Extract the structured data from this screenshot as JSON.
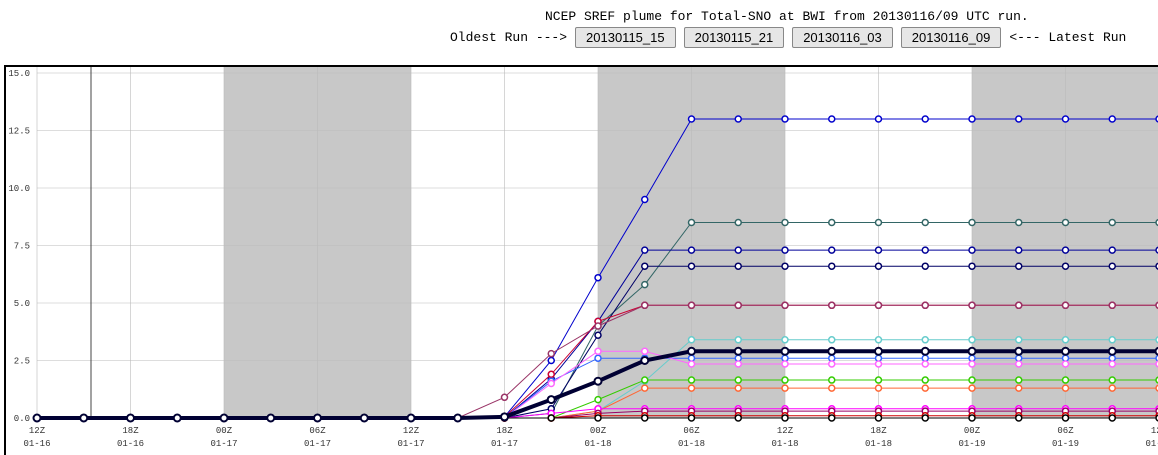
{
  "controls": {
    "oldest_label": "Oldest Run --->",
    "latest_label": "<--- Latest Run",
    "runs": [
      "20130115_15",
      "20130115_21",
      "20130116_03",
      "20130116_09"
    ]
  },
  "chart_data": {
    "type": "line",
    "title": "NCEP SREF plume for Total-SNO at BWI from 20130116/09 UTC run.",
    "x": [
      0,
      3,
      6,
      9,
      12,
      15,
      18,
      21,
      24,
      27,
      30,
      33,
      36,
      39,
      42,
      45,
      48,
      51,
      54,
      57,
      60,
      63,
      66,
      69,
      72
    ],
    "xlim": [
      0,
      72
    ],
    "xticks": [
      {
        "value": 0,
        "label": "12Z",
        "sublabel": "01-16"
      },
      {
        "value": 6,
        "label": "18Z",
        "sublabel": "01-16"
      },
      {
        "value": 12,
        "label": "00Z",
        "sublabel": "01-17"
      },
      {
        "value": 18,
        "label": "06Z",
        "sublabel": "01-17"
      },
      {
        "value": 24,
        "label": "12Z",
        "sublabel": "01-17"
      },
      {
        "value": 30,
        "label": "18Z",
        "sublabel": "01-17"
      },
      {
        "value": 36,
        "label": "00Z",
        "sublabel": "01-18"
      },
      {
        "value": 42,
        "label": "06Z",
        "sublabel": "01-18"
      },
      {
        "value": 48,
        "label": "12Z",
        "sublabel": "01-18"
      },
      {
        "value": 54,
        "label": "18Z",
        "sublabel": "01-18"
      },
      {
        "value": 60,
        "label": "00Z",
        "sublabel": "01-19"
      },
      {
        "value": 66,
        "label": "06Z",
        "sublabel": "01-19"
      },
      {
        "value": 72,
        "label": "12Z",
        "sublabel": "01-19"
      }
    ],
    "ylim": [
      0,
      15
    ],
    "yticks": [
      {
        "value": 0,
        "label": "0.0"
      },
      2.5,
      {
        "value": 5,
        "label": "5.0"
      },
      7.5,
      {
        "value": 10,
        "label": "10.0"
      },
      12.5,
      {
        "value": 15,
        "label": "15.0"
      }
    ],
    "grid": true,
    "shaded": [
      [
        12,
        24
      ],
      [
        36,
        48
      ],
      [
        60,
        72
      ]
    ],
    "series": [
      {
        "color": "#0000cc",
        "width": 1,
        "values": [
          0,
          0,
          0,
          0,
          0,
          0,
          0,
          0,
          0,
          0,
          0.05,
          2.5,
          6.1,
          9.5,
          13,
          13,
          13,
          13,
          13,
          13,
          13,
          13,
          13,
          13,
          13
        ]
      },
      {
        "color": "#336666",
        "width": 1,
        "values": [
          0,
          0,
          0,
          0,
          0,
          0,
          0,
          0,
          0,
          0,
          0,
          0.2,
          4.0,
          5.8,
          8.5,
          8.5,
          8.5,
          8.5,
          8.5,
          8.5,
          8.5,
          8.5,
          8.5,
          8.5,
          8.5
        ]
      },
      {
        "color": "#000099",
        "width": 1,
        "values": [
          0,
          0,
          0,
          0,
          0,
          0,
          0,
          0,
          0,
          0,
          0,
          1.7,
          4.2,
          7.3,
          7.3,
          7.3,
          7.3,
          7.3,
          7.3,
          7.3,
          7.3,
          7.3,
          7.3,
          7.3,
          7.3
        ]
      },
      {
        "color": "#000066",
        "width": 1,
        "values": [
          0,
          0,
          0,
          0,
          0,
          0,
          0,
          0,
          0,
          0,
          0,
          0.4,
          3.6,
          6.6,
          6.6,
          6.6,
          6.6,
          6.6,
          6.6,
          6.6,
          6.6,
          6.6,
          6.6,
          6.6,
          6.6
        ]
      },
      {
        "color": "#cc0033",
        "width": 1,
        "values": [
          0,
          0,
          0,
          0,
          0,
          0,
          0,
          0,
          0,
          0,
          0.05,
          1.9,
          4.2,
          4.9,
          4.9,
          4.9,
          4.9,
          4.9,
          4.9,
          4.9,
          4.9,
          4.9,
          4.9,
          4.9,
          4.9
        ]
      },
      {
        "color": "#993366",
        "width": 1,
        "values": [
          0,
          0,
          0,
          0,
          0,
          0,
          0,
          0,
          0,
          0,
          0.9,
          2.8,
          4.0,
          4.9,
          4.9,
          4.9,
          4.9,
          4.9,
          4.9,
          4.9,
          4.9,
          4.9,
          4.9,
          4.9,
          4.9
        ]
      },
      {
        "color": "#66cccc",
        "width": 1,
        "values": [
          0,
          0,
          0,
          0,
          0,
          0,
          0,
          0,
          0,
          0,
          0,
          0,
          0.3,
          1.6,
          3.4,
          3.4,
          3.4,
          3.4,
          3.4,
          3.4,
          3.4,
          3.4,
          3.4,
          3.4,
          3.4
        ]
      },
      {
        "color": "#3366ff",
        "width": 1,
        "values": [
          0,
          0,
          0,
          0,
          0,
          0,
          0,
          0,
          0,
          0,
          0,
          1.6,
          2.6,
          2.6,
          2.6,
          2.6,
          2.6,
          2.6,
          2.6,
          2.6,
          2.6,
          2.6,
          2.6,
          2.6,
          2.6
        ]
      },
      {
        "color": "#ff66ff",
        "width": 1,
        "values": [
          0,
          0,
          0,
          0,
          0,
          0,
          0,
          0,
          0,
          0,
          0,
          1.5,
          2.9,
          2.9,
          2.35,
          2.35,
          2.35,
          2.35,
          2.35,
          2.35,
          2.35,
          2.35,
          2.35,
          2.35,
          2.35
        ]
      },
      {
        "color": "#33cc00",
        "width": 1,
        "values": [
          0,
          0,
          0,
          0,
          0,
          0,
          0,
          0,
          0,
          0,
          0,
          0,
          0.8,
          1.65,
          1.65,
          1.65,
          1.65,
          1.65,
          1.65,
          1.65,
          1.65,
          1.65,
          1.65,
          1.65,
          1.65
        ]
      },
      {
        "color": "#ff6633",
        "width": 1,
        "values": [
          0,
          0,
          0,
          0,
          0,
          0,
          0,
          0,
          0,
          0,
          0,
          0,
          0.3,
          1.3,
          1.3,
          1.3,
          1.3,
          1.3,
          1.3,
          1.3,
          1.3,
          1.3,
          1.3,
          1.3,
          1.3
        ]
      },
      {
        "color": "#ff00ff",
        "width": 1,
        "values": [
          0,
          0,
          0,
          0,
          0,
          0,
          0,
          0,
          0,
          0,
          0,
          0.2,
          0.4,
          0.4,
          0.4,
          0.4,
          0.4,
          0.4,
          0.4,
          0.4,
          0.4,
          0.4,
          0.4,
          0.4,
          0.4
        ]
      },
      {
        "color": "#990066",
        "width": 1,
        "values": [
          0,
          0,
          0,
          0,
          0,
          0,
          0,
          0,
          0,
          0,
          0,
          0,
          0.2,
          0.3,
          0.3,
          0.3,
          0.3,
          0.3,
          0.3,
          0.3,
          0.3,
          0.3,
          0.3,
          0.3,
          0.3
        ]
      },
      {
        "color": "#cc0000",
        "width": 1,
        "values": [
          0,
          0,
          0,
          0,
          0,
          0,
          0,
          0,
          0,
          0,
          0,
          0,
          0.1,
          0.1,
          0.1,
          0.1,
          0.1,
          0.1,
          0.1,
          0.1,
          0.1,
          0.1,
          0.1,
          0.1,
          0.1
        ]
      },
      {
        "color": "#000000",
        "width": 1,
        "values": [
          0,
          0,
          0,
          0,
          0,
          0,
          0,
          0,
          0,
          0,
          0,
          0,
          0,
          0,
          0,
          0,
          0,
          0,
          0,
          0,
          0,
          0,
          0,
          0,
          0
        ]
      },
      {
        "color": "#000033",
        "width": 4,
        "values": [
          0,
          0,
          0,
          0,
          0,
          0,
          0,
          0,
          0,
          0,
          0.05,
          0.8,
          1.6,
          2.5,
          2.9,
          2.9,
          2.9,
          2.9,
          2.9,
          2.9,
          2.9,
          2.9,
          2.9,
          2.9,
          2.9
        ]
      }
    ]
  }
}
